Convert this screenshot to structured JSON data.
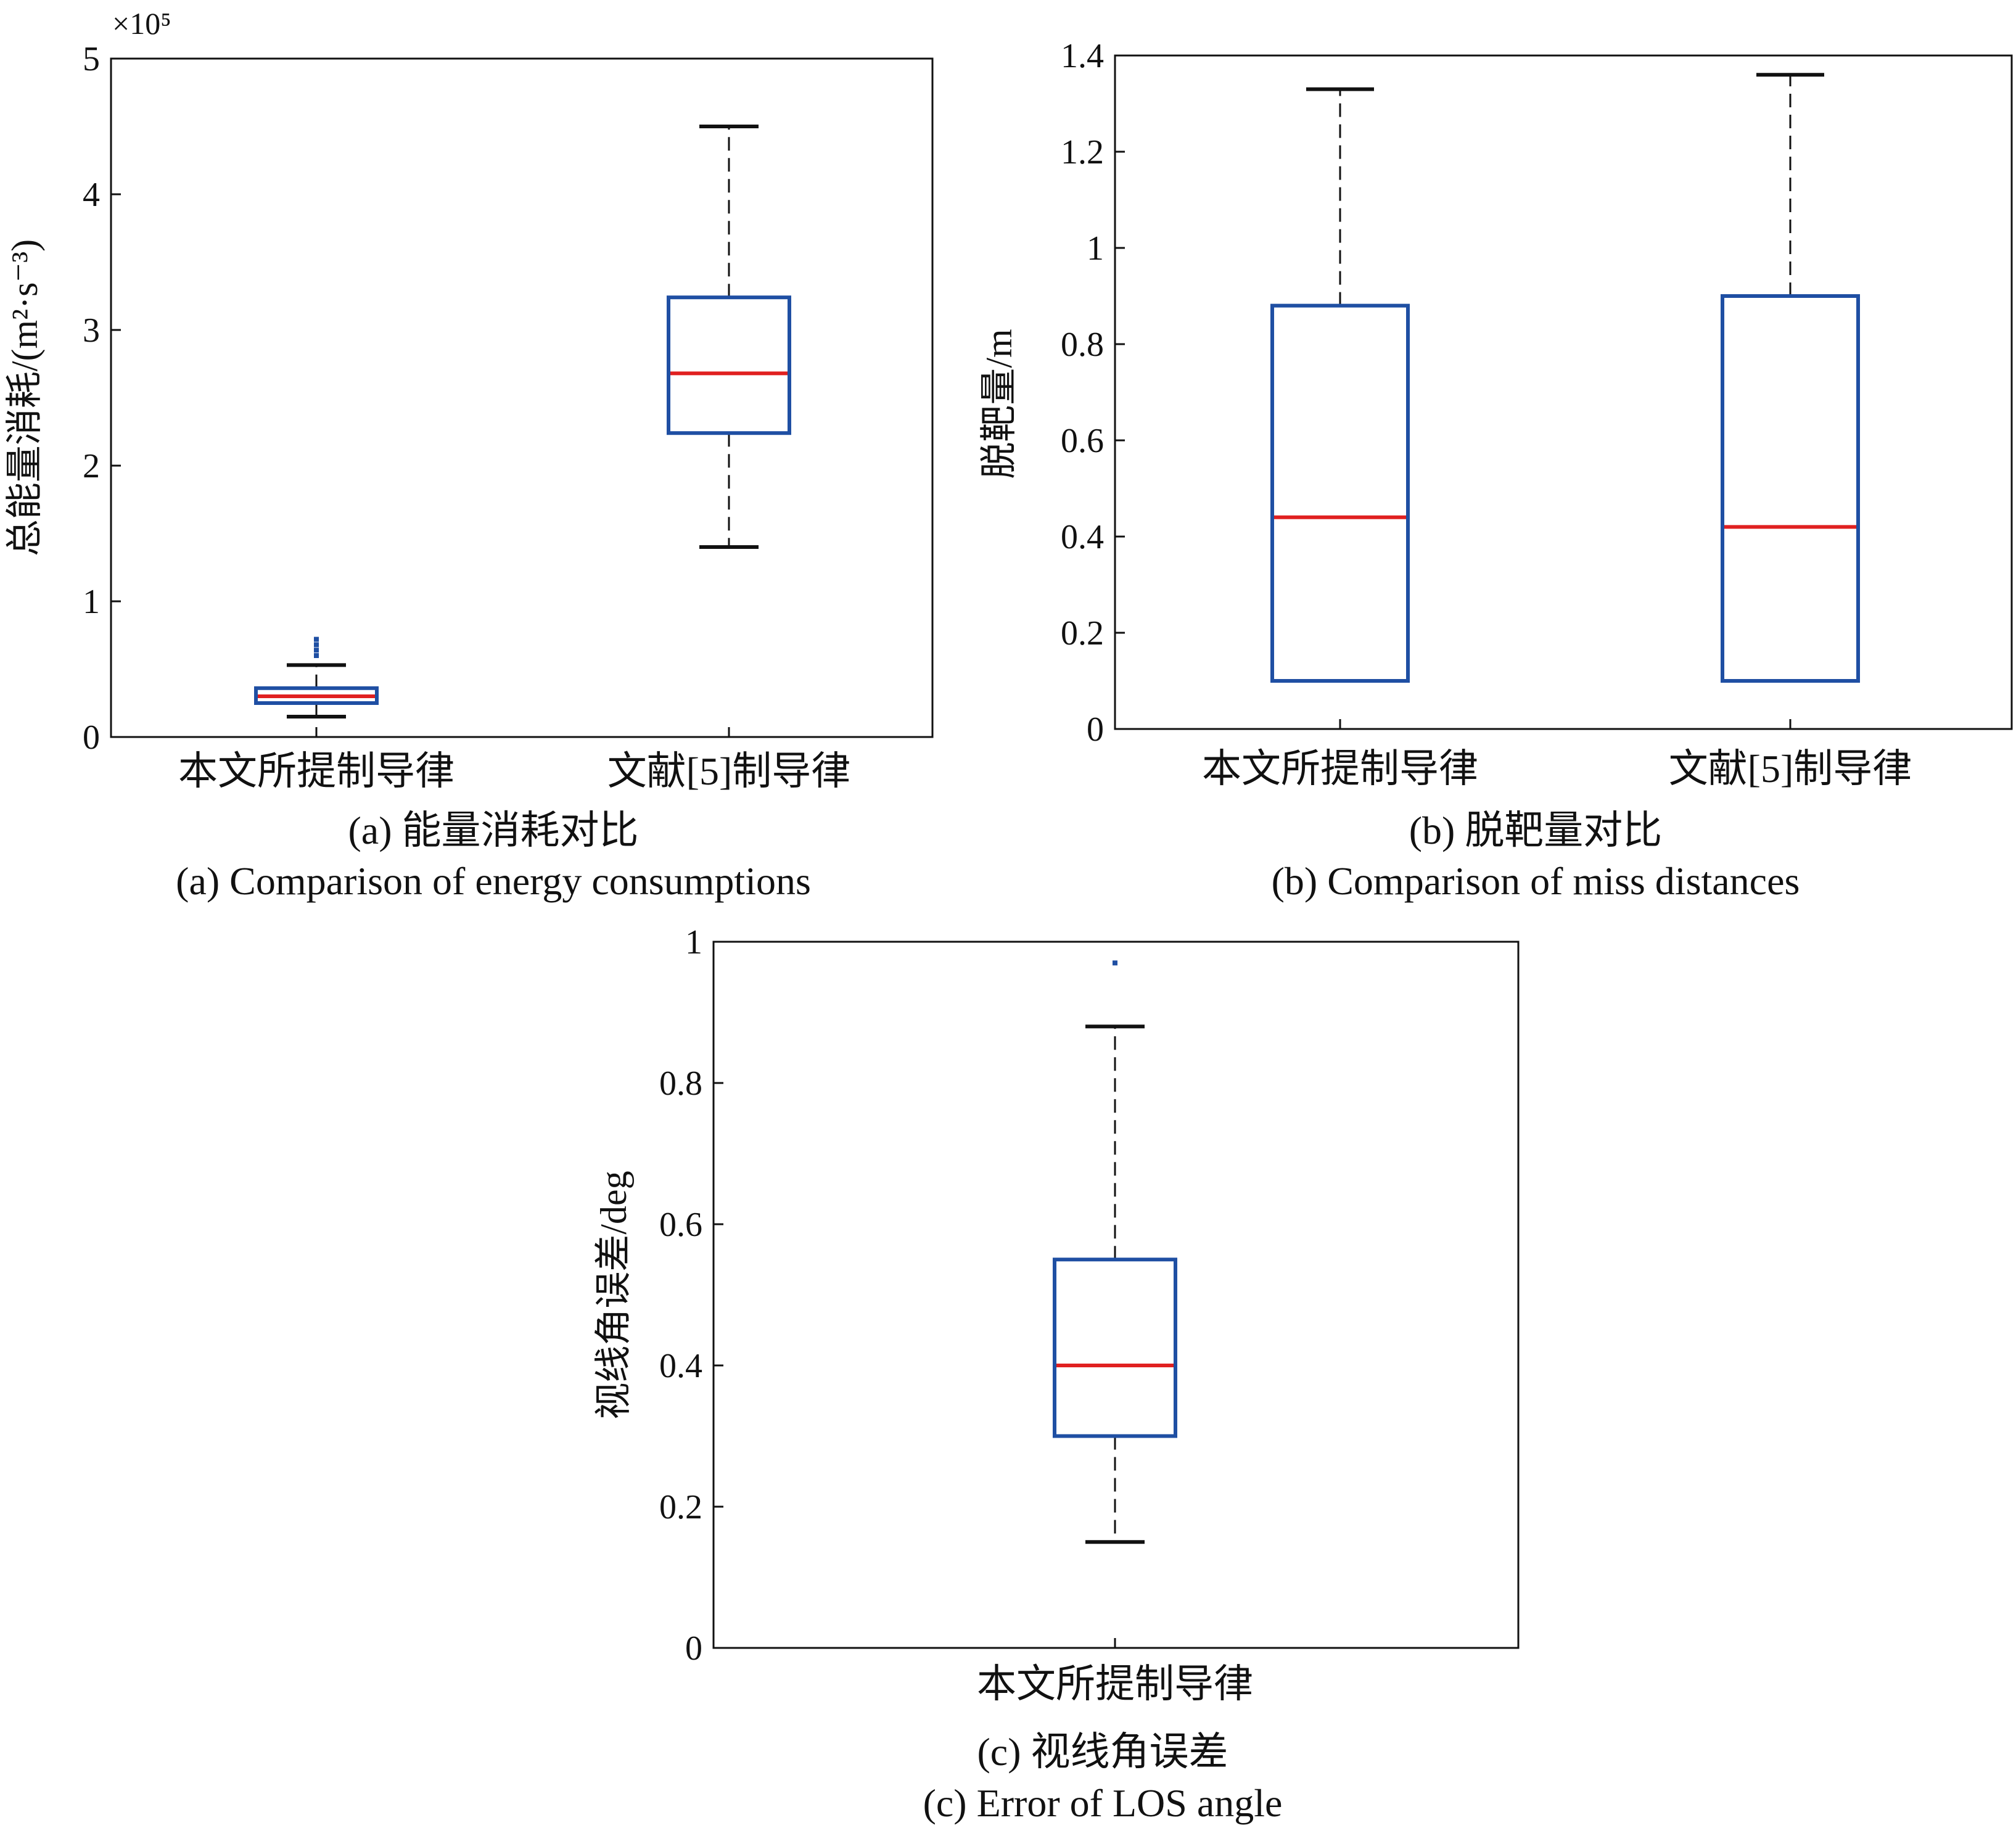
{
  "chart_data": [
    {
      "type": "box",
      "panel": "a",
      "ylabel": "总能量消耗/(m²·s⁻³)",
      "y_multiplier": "×10⁵",
      "ylim": [
        0,
        5
      ],
      "yticks": [
        "0",
        "1",
        "2",
        "3",
        "4",
        "5"
      ],
      "categories": [
        "本文所提制导律",
        "文献[5]制导律"
      ],
      "boxes": [
        {
          "whisker_low": 0.15,
          "q1": 0.25,
          "median": 0.3,
          "q3": 0.36,
          "whisker_high": 0.53,
          "outliers": [
            0.6,
            0.64,
            0.68,
            0.72
          ]
        },
        {
          "whisker_low": 1.4,
          "q1": 2.24,
          "median": 2.68,
          "q3": 3.24,
          "whisker_high": 4.5,
          "outliers": []
        }
      ],
      "caption_cn": "(a) 能量消耗对比",
      "caption_en": "(a) Comparison of energy consumptions"
    },
    {
      "type": "box",
      "panel": "b",
      "ylabel": "脱靶量/m",
      "ylim": [
        0,
        1.4
      ],
      "yticks": [
        "0",
        "0.2",
        "0.4",
        "0.6",
        "0.8",
        "1",
        "1.2",
        "1.4"
      ],
      "categories": [
        "本文所提制导律",
        "文献[5]制导律"
      ],
      "boxes": [
        {
          "whisker_low": 0.1,
          "q1": 0.1,
          "median": 0.44,
          "q3": 0.88,
          "whisker_high": 1.33,
          "outliers": []
        },
        {
          "whisker_low": 0.1,
          "q1": 0.1,
          "median": 0.42,
          "q3": 0.9,
          "whisker_high": 1.36,
          "outliers": []
        }
      ],
      "caption_cn": "(b) 脱靶量对比",
      "caption_en": "(b) Comparison of miss distances"
    },
    {
      "type": "box",
      "panel": "c",
      "ylabel": "视线角误差/deg",
      "ylim": [
        0,
        1
      ],
      "yticks": [
        "0",
        "0.2",
        "0.4",
        "0.6",
        "0.8",
        "1"
      ],
      "categories": [
        "本文所提制导律"
      ],
      "boxes": [
        {
          "whisker_low": 0.15,
          "q1": 0.3,
          "median": 0.4,
          "q3": 0.55,
          "whisker_high": 0.88,
          "outliers": [
            0.97
          ]
        }
      ],
      "caption_cn": "(c) 视线角误差",
      "caption_en": "(c) Error of LOS angle"
    }
  ],
  "colors": {
    "box": "#1f4fa3",
    "median": "#e02020",
    "whisker": "#111111",
    "axis": "#111111",
    "outlier": "#1f4fa3"
  }
}
